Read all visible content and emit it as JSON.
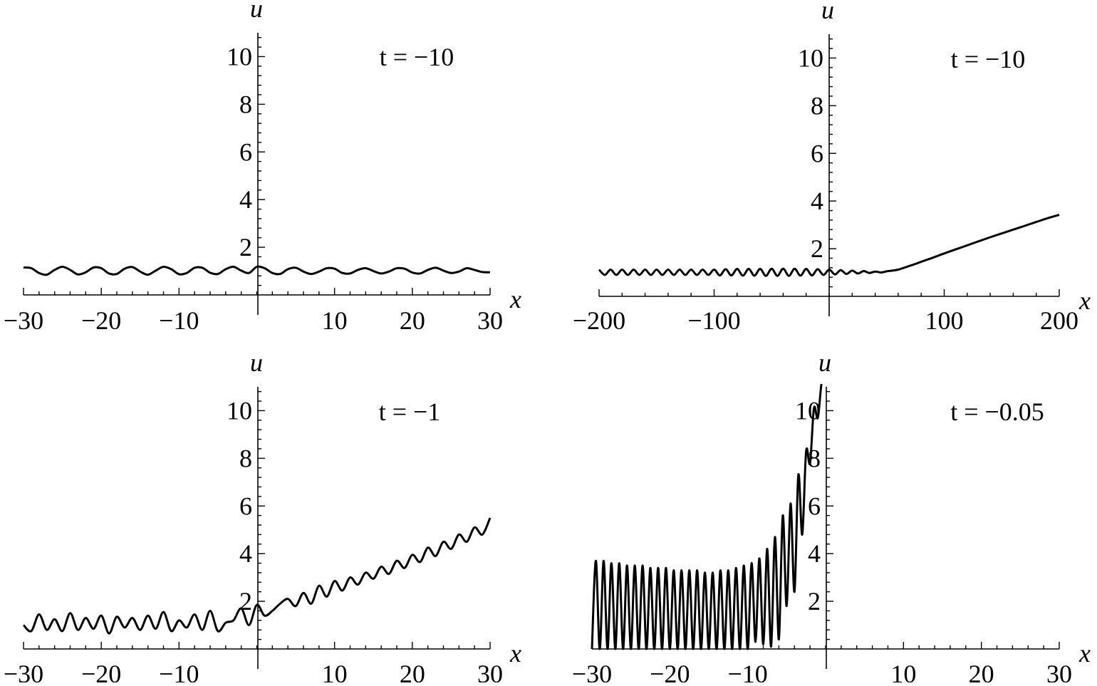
{
  "chart_data": [
    {
      "type": "line",
      "panel": "top-left",
      "annotation": "t = −10",
      "xlabel": "x",
      "ylabel": "u",
      "xlim": [
        -30,
        30
      ],
      "ylim": [
        0,
        11
      ],
      "x_ticks": [
        -30,
        -20,
        -10,
        10,
        20,
        30
      ],
      "x_tick_labels": [
        "−30",
        "−20",
        "−10",
        "10",
        "20",
        "30"
      ],
      "y_ticks": [
        2,
        4,
        6,
        8,
        10
      ],
      "y_tick_labels": [
        "2",
        "4",
        "6",
        "8",
        "10"
      ],
      "series": [
        {
          "x": [
            -30,
            -29,
            -28,
            -27,
            -26,
            -25,
            -24,
            -23,
            -22,
            -21,
            -20,
            -19,
            -18,
            -17,
            -16,
            -15,
            -14,
            -13,
            -12,
            -11,
            -10,
            -9,
            -8,
            -7,
            -6,
            -5,
            -4,
            -3,
            -2,
            -1,
            0,
            1,
            2,
            3,
            4,
            5,
            6,
            7,
            8,
            9,
            10,
            11,
            12,
            13,
            14,
            15,
            16,
            17,
            18,
            19,
            20,
            21,
            22,
            23,
            24,
            25,
            26,
            27,
            28,
            29,
            30
          ],
          "y": [
            1.15,
            1.12,
            0.92,
            0.85,
            1.05,
            1.18,
            1.05,
            0.86,
            0.95,
            1.15,
            1.12,
            0.9,
            0.88,
            1.1,
            1.17,
            0.98,
            0.85,
            1.02,
            1.18,
            1.08,
            0.87,
            0.92,
            1.14,
            1.14,
            0.93,
            0.88,
            1.08,
            1.18,
            1.02,
            0.92,
            1.18,
            1.12,
            0.92,
            0.88,
            1.08,
            1.14,
            0.98,
            0.88,
            0.98,
            1.12,
            1.1,
            0.92,
            0.9,
            1.05,
            1.12,
            1.0,
            0.9,
            0.98,
            1.12,
            1.1,
            0.94,
            0.9,
            1.05,
            1.14,
            1.02,
            0.92,
            0.98,
            1.12,
            1.05,
            0.96,
            0.95
          ]
        }
      ]
    },
    {
      "type": "line",
      "panel": "top-right",
      "annotation": "t = −10",
      "xlabel": "x",
      "ylabel": "u",
      "xlim": [
        -200,
        200
      ],
      "ylim": [
        0,
        11
      ],
      "x_ticks": [
        -200,
        -100,
        100,
        200
      ],
      "x_tick_labels": [
        "−200",
        "−100",
        "100",
        "200"
      ],
      "y_ticks": [
        2,
        4,
        6,
        8,
        10
      ],
      "y_tick_labels": [
        "2",
        "4",
        "6",
        "8",
        "10"
      ],
      "series": [
        {
          "x": [
            -200,
            -195,
            -190,
            -185,
            -180,
            -175,
            -170,
            -165,
            -160,
            -155,
            -150,
            -145,
            -140,
            -135,
            -130,
            -125,
            -120,
            -115,
            -110,
            -105,
            -100,
            -95,
            -90,
            -85,
            -80,
            -75,
            -70,
            -65,
            -60,
            -55,
            -50,
            -45,
            -40,
            -35,
            -30,
            -25,
            -20,
            -15,
            -10,
            -5,
            0,
            5,
            10,
            15,
            20,
            25,
            30,
            35,
            40,
            45,
            50,
            55,
            60,
            65,
            70,
            75,
            80,
            90,
            100,
            110,
            120,
            130,
            140,
            150,
            160,
            170,
            180,
            190,
            200
          ],
          "y": [
            1.12,
            0.9,
            1.12,
            0.9,
            1.12,
            0.9,
            1.12,
            0.9,
            1.12,
            0.9,
            1.12,
            0.9,
            1.12,
            0.9,
            1.12,
            0.9,
            1.12,
            0.9,
            1.12,
            0.9,
            1.12,
            0.88,
            1.14,
            0.88,
            1.15,
            0.87,
            1.15,
            0.87,
            1.15,
            0.86,
            1.16,
            0.86,
            1.16,
            0.86,
            1.16,
            0.87,
            1.15,
            0.88,
            1.14,
            0.9,
            1.12,
            0.92,
            1.1,
            0.94,
            1.08,
            0.96,
            1.06,
            0.98,
            1.04,
            1.0,
            1.05,
            1.08,
            1.12,
            1.2,
            1.28,
            1.36,
            1.45,
            1.62,
            1.8,
            1.97,
            2.14,
            2.31,
            2.48,
            2.64,
            2.8,
            2.96,
            3.12,
            3.28,
            3.42
          ]
        }
      ]
    },
    {
      "type": "line",
      "panel": "bottom-left",
      "annotation": "t = −1",
      "xlabel": "x",
      "ylabel": "u",
      "xlim": [
        -30,
        30
      ],
      "ylim": [
        0,
        11
      ],
      "x_ticks": [
        -30,
        -20,
        -10,
        10,
        20,
        30
      ],
      "x_tick_labels": [
        "−30",
        "−20",
        "−10",
        "10",
        "20",
        "30"
      ],
      "y_ticks": [
        2,
        4,
        6,
        8,
        10
      ],
      "y_tick_labels": [
        "2",
        "4",
        "6",
        "8",
        "10"
      ],
      "series": [
        {
          "x": [
            -30,
            -29,
            -28,
            -27,
            -26,
            -25,
            -24,
            -23,
            -22,
            -21,
            -20,
            -19,
            -18,
            -17,
            -16,
            -15,
            -14,
            -13,
            -12,
            -11,
            -10,
            -9,
            -8,
            -7,
            -6,
            -5,
            -4,
            -3,
            -2,
            -1,
            0,
            1,
            2,
            3,
            4,
            5,
            6,
            7,
            8,
            9,
            10,
            11,
            12,
            13,
            14,
            15,
            16,
            17,
            18,
            19,
            20,
            21,
            22,
            23,
            24,
            25,
            26,
            27,
            28,
            29,
            30
          ],
          "y": [
            1.0,
            0.75,
            1.45,
            0.8,
            1.25,
            0.75,
            1.5,
            0.8,
            1.3,
            0.85,
            1.4,
            0.65,
            1.35,
            0.9,
            1.3,
            0.8,
            1.4,
            0.85,
            1.55,
            0.75,
            1.2,
            0.9,
            1.45,
            0.8,
            1.6,
            0.75,
            1.1,
            1.2,
            1.7,
            1.0,
            1.85,
            1.4,
            1.6,
            1.9,
            2.1,
            1.8,
            2.35,
            1.9,
            2.65,
            2.2,
            2.85,
            2.45,
            3.0,
            2.7,
            3.2,
            2.95,
            3.45,
            3.15,
            3.7,
            3.4,
            3.95,
            3.65,
            4.25,
            3.9,
            4.5,
            4.2,
            4.8,
            4.5,
            5.1,
            4.8,
            5.5
          ]
        }
      ]
    },
    {
      "type": "line",
      "panel": "bottom-right",
      "annotation": "t = −0.05",
      "xlabel": "x",
      "ylabel": "u",
      "xlim": [
        -30,
        30
      ],
      "ylim": [
        0,
        11
      ],
      "x_ticks": [
        -30,
        -20,
        -10,
        10,
        20,
        30
      ],
      "x_tick_labels": [
        "−30",
        "−20",
        "−10",
        "10",
        "20",
        "30"
      ],
      "y_ticks": [
        2,
        4,
        6,
        8,
        10
      ],
      "y_tick_labels": [
        "2",
        "4",
        "6",
        "8",
        "10"
      ],
      "series": [
        {
          "x": [
            -30,
            -29.5,
            -29,
            -28.5,
            -28,
            -27.5,
            -27,
            -26.5,
            -26,
            -25.5,
            -25,
            -24.5,
            -24,
            -23.5,
            -23,
            -22.5,
            -22,
            -21.5,
            -21,
            -20.5,
            -20,
            -19.5,
            -19,
            -18.5,
            -18,
            -17.5,
            -17,
            -16.5,
            -16,
            -15.5,
            -15,
            -14.5,
            -14,
            -13.5,
            -13,
            -12.5,
            -12,
            -11.5,
            -11,
            -10.5,
            -10,
            -9.5,
            -9,
            -8.5,
            -8,
            -7.5,
            -7,
            -6.5,
            -6,
            -5.5,
            -5,
            -4.5,
            -4,
            -3.5,
            -3,
            -2.5,
            -2,
            -1.5,
            -1,
            -0.5,
            0,
            0.5
          ],
          "y": [
            0.0,
            3.7,
            0.0,
            3.7,
            0.0,
            3.6,
            0.0,
            3.6,
            0.0,
            3.5,
            0.0,
            3.5,
            0.0,
            3.5,
            0.0,
            3.4,
            0.0,
            3.4,
            0.0,
            3.4,
            0.0,
            3.3,
            0.0,
            3.3,
            0.0,
            3.3,
            0.0,
            3.3,
            0.0,
            3.2,
            0.0,
            3.2,
            0.0,
            3.3,
            0.0,
            3.3,
            0.0,
            3.4,
            0.0,
            3.5,
            0.0,
            3.6,
            0.3,
            3.8,
            0.2,
            4.2,
            0.1,
            4.7,
            0.4,
            5.6,
            1.8,
            6.1,
            2.4,
            7.3,
            4.8,
            8.3,
            7.8,
            10.1,
            9.7,
            11.2,
            11.5,
            11.5
          ]
        }
      ]
    }
  ]
}
